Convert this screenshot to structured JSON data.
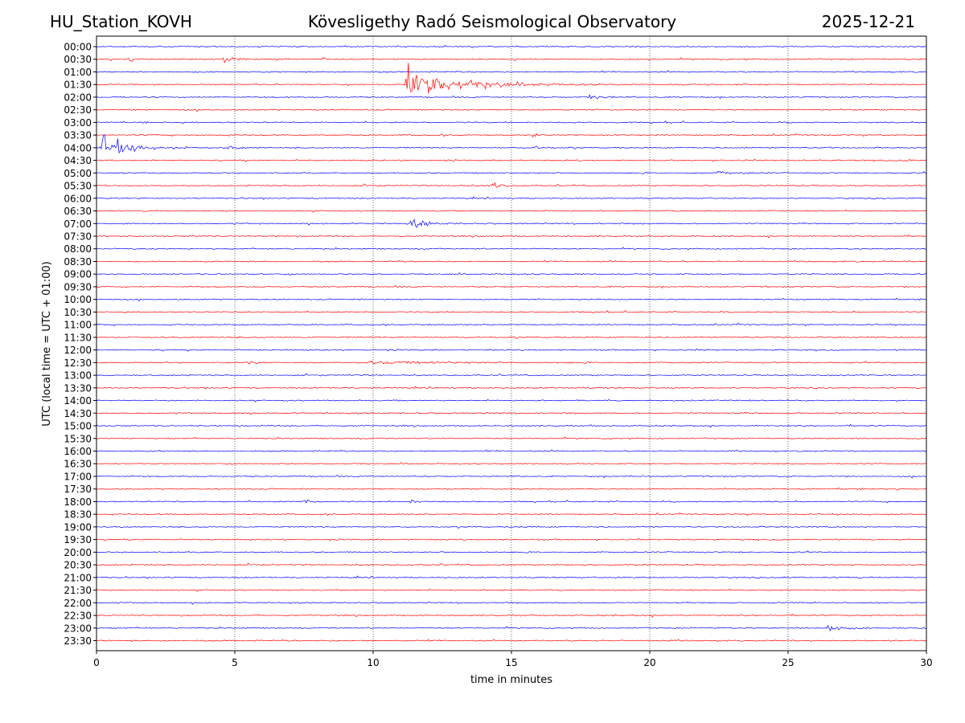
{
  "header": {
    "station": "HU_Station_KOVH",
    "observatory": "Kövesligethy Radó Seismological Observatory",
    "date": "2025-12-21"
  },
  "chart_data": {
    "type": "line",
    "title": "Kövesligethy Radó Seismological Observatory",
    "xlabel": "time in minutes",
    "ylabel": "UTC (local time = UTC + 01:00)",
    "xlim": [
      0,
      30
    ],
    "x_ticks": [
      0,
      5,
      10,
      15,
      20,
      25,
      30
    ],
    "grid": "vertical dotted lines at 5-minute intervals",
    "colors": {
      "even_rows": "#0000ff",
      "odd_rows": "#ff0000",
      "grid": "#000000"
    },
    "rows": [
      "00:00",
      "00:30",
      "01:00",
      "01:30",
      "02:00",
      "02:30",
      "03:00",
      "03:30",
      "04:00",
      "04:30",
      "05:00",
      "05:30",
      "06:00",
      "06:30",
      "07:00",
      "07:30",
      "08:00",
      "08:30",
      "09:00",
      "09:30",
      "10:00",
      "10:30",
      "11:00",
      "11:30",
      "12:00",
      "12:30",
      "13:00",
      "13:30",
      "14:00",
      "14:30",
      "15:00",
      "15:30",
      "16:00",
      "16:30",
      "17:00",
      "17:30",
      "18:00",
      "18:30",
      "19:00",
      "19:30",
      "20:00",
      "20:30",
      "21:00",
      "21:30",
      "22:00",
      "22:30",
      "23:00",
      "23:30"
    ],
    "events": [
      {
        "row": "00:30",
        "start_min": 1.2,
        "amplitude": 0.45,
        "duration_min": 0.4
      },
      {
        "row": "00:30",
        "start_min": 4.6,
        "amplitude": 0.6,
        "duration_min": 0.8
      },
      {
        "row": "00:30",
        "start_min": 8.2,
        "amplitude": 0.35,
        "duration_min": 0.4
      },
      {
        "row": "01:30",
        "start_min": 11.2,
        "amplitude": 3.2,
        "duration_min": 4.5
      },
      {
        "row": "02:00",
        "start_min": 17.8,
        "amplitude": 0.6,
        "duration_min": 1.2
      },
      {
        "row": "03:30",
        "start_min": 15.8,
        "amplitude": 0.35,
        "duration_min": 0.5
      },
      {
        "row": "04:00",
        "start_min": 0.15,
        "amplitude": 2.0,
        "duration_min": 2.5
      },
      {
        "row": "04:00",
        "start_min": 4.8,
        "amplitude": 0.35,
        "duration_min": 0.6
      },
      {
        "row": "04:00",
        "start_min": 15.8,
        "amplitude": 0.45,
        "duration_min": 0.8
      },
      {
        "row": "04:30",
        "start_min": 29.2,
        "amplitude": 0.25,
        "duration_min": 0.8
      },
      {
        "row": "05:00",
        "start_min": 22.5,
        "amplitude": 0.2,
        "duration_min": 1.5
      },
      {
        "row": "05:30",
        "start_min": 14.3,
        "amplitude": 0.7,
        "duration_min": 0.8
      },
      {
        "row": "07:00",
        "start_min": 11.4,
        "amplitude": 0.7,
        "duration_min": 1.5
      },
      {
        "row": "12:30",
        "start_min": 5.5,
        "amplitude": 0.3,
        "duration_min": 0.8
      },
      {
        "row": "12:30",
        "start_min": 9.8,
        "amplitude": 0.2,
        "duration_min": 8.0
      },
      {
        "row": "18:00",
        "start_min": 7.5,
        "amplitude": 0.3,
        "duration_min": 0.9
      },
      {
        "row": "18:00",
        "start_min": 11.4,
        "amplitude": 0.2,
        "duration_min": 0.9
      },
      {
        "row": "20:00",
        "start_min": 17.4,
        "amplitude": 0.25,
        "duration_min": 0.2
      },
      {
        "row": "21:00",
        "start_min": 24.8,
        "amplitude": 0.2,
        "duration_min": 0.4
      },
      {
        "row": "23:00",
        "start_min": 26.4,
        "amplitude": 0.75,
        "duration_min": 1.4
      }
    ]
  }
}
